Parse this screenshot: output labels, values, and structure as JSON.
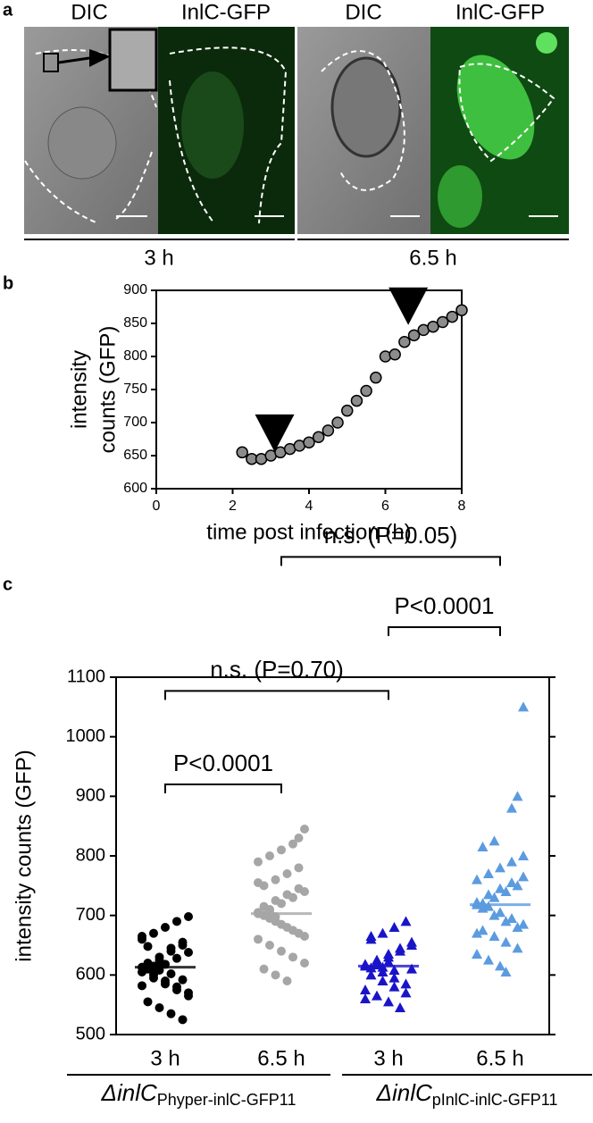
{
  "panel_labels": [
    "a",
    "b",
    "c"
  ],
  "panel_a": {
    "channels": [
      "DIC",
      "InlC-GFP",
      "DIC",
      "InlC-GFP"
    ],
    "timepoints": [
      "3 h",
      "6.5 h"
    ]
  },
  "chart_data": [
    {
      "type": "scatter-line",
      "xlabel": "time post infection (h)",
      "ylabel": [
        "intensity",
        "counts (GFP)"
      ],
      "xlim": [
        0,
        8
      ],
      "xticks": [
        0,
        2,
        4,
        6,
        8
      ],
      "ylim": [
        600,
        900
      ],
      "yticks": [
        600,
        650,
        700,
        750,
        800,
        850,
        900
      ],
      "color": "#8c8c8c",
      "x": [
        2.25,
        2.5,
        2.75,
        3,
        3.25,
        3.5,
        3.75,
        4,
        4.25,
        4.5,
        4.75,
        5,
        5.25,
        5.5,
        5.75,
        6,
        6.25,
        6.5,
        6.75,
        7,
        7.25,
        7.5,
        7.75,
        8
      ],
      "values": [
        655,
        645,
        645,
        650,
        655,
        660,
        665,
        670,
        678,
        688,
        700,
        718,
        733,
        748,
        768,
        800,
        803,
        822,
        832,
        840,
        845,
        852,
        860,
        870
      ],
      "arrowheads": [
        {
          "x": 3.1,
          "y": 688
        },
        {
          "x": 6.6,
          "y": 880
        }
      ]
    },
    {
      "type": "strip",
      "ylabel": "intensity counts (GFP)",
      "ylim": [
        500,
        1100
      ],
      "yticks": [
        500,
        600,
        700,
        800,
        900,
        1000,
        1100
      ],
      "categories": [
        "3 h",
        "6.5 h",
        "3 h",
        "6.5 h"
      ],
      "groups": [
        {
          "name": "ΔinlC",
          "subscript": "Phyper-inlC-GFP11"
        },
        {
          "name": "ΔinlC",
          "subscript": "pInlC-inlC-GFP11"
        }
      ],
      "series": [
        {
          "color": "#000000",
          "marker": "circle",
          "median": 613,
          "values": [
            613,
            613,
            600,
            625,
            590,
            640,
            580,
            650,
            570,
            660,
            555,
            670,
            545,
            680,
            535,
            690,
            525,
            698,
            605,
            620,
            595,
            630,
            585,
            645,
            575,
            655,
            565,
            665,
            610,
            615,
            608,
            618,
            602,
            628,
            592,
            638,
            582,
            648,
            612,
            614
          ]
        },
        {
          "color": "#a6a6a6",
          "marker": "circle",
          "median": 703,
          "values": [
            703,
            700,
            710,
            690,
            720,
            680,
            730,
            670,
            740,
            660,
            750,
            650,
            760,
            640,
            770,
            630,
            780,
            620,
            790,
            610,
            800,
            600,
            810,
            590,
            820,
            830,
            845,
            705,
            715,
            695,
            725,
            685,
            735,
            675,
            745,
            665,
            755,
            700,
            708,
            698
          ]
        },
        {
          "color": "#1a14c8",
          "marker": "triangle",
          "median": 615,
          "values": [
            615,
            612,
            620,
            605,
            630,
            595,
            640,
            585,
            650,
            575,
            660,
            565,
            670,
            555,
            680,
            545,
            690,
            610,
            618,
            600,
            625,
            590,
            635,
            580,
            645,
            570,
            655,
            560,
            665,
            617,
            613,
            622,
            608
          ]
        },
        {
          "color": "#5b9be0",
          "marker": "triangle",
          "median": 718,
          "values": [
            718,
            720,
            715,
            730,
            705,
            740,
            695,
            750,
            685,
            760,
            675,
            770,
            665,
            780,
            655,
            790,
            645,
            800,
            635,
            815,
            625,
            825,
            615,
            605,
            880,
            900,
            1050,
            722,
            712,
            735,
            700,
            745,
            690,
            755,
            680,
            765,
            670,
            720
          ]
        }
      ],
      "comparisons": [
        {
          "from": 0,
          "to": 1,
          "label": "P<0.0001",
          "y": 920
        },
        {
          "from": 0,
          "to": 2,
          "label": "n.s. (P=0.70)",
          "y": 1077
        },
        {
          "from": 2,
          "to": 3,
          "label": "P<0.0001",
          "y": 1184
        },
        {
          "from": 1,
          "to": 3,
          "label": "n.s. (P=0.05)",
          "y": 1302
        }
      ]
    }
  ]
}
